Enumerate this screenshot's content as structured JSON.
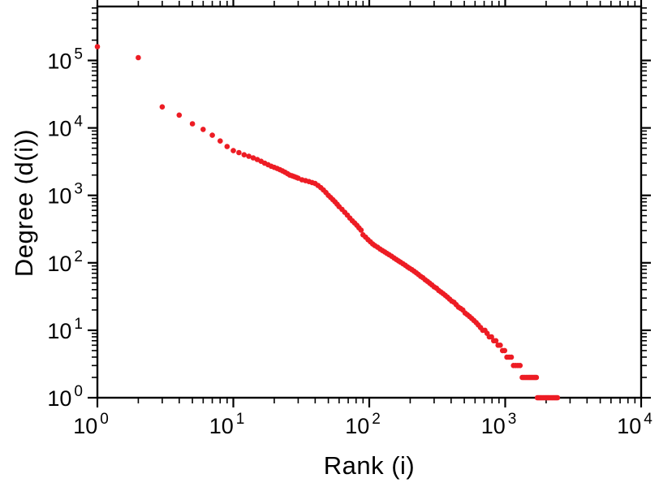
{
  "chart_data": {
    "type": "scatter",
    "xlabel": "Rank (i)",
    "ylabel": "Degree (d(i))",
    "x_scale": "log",
    "y_scale": "log",
    "tick_base": "10",
    "x_tick_exponents": [
      0,
      1,
      2,
      3,
      4
    ],
    "y_tick_exponents": [
      0,
      1,
      2,
      3,
      4,
      5
    ],
    "x_range_exp": [
      0,
      4
    ],
    "y_range_exp": [
      0,
      5.8
    ],
    "point_color": "#ed1c24",
    "axis_color": "#000000",
    "background_color": "#ffffff",
    "points": [
      [
        1,
        160000
      ],
      [
        2,
        110000
      ],
      [
        3,
        20500
      ],
      [
        4,
        15500
      ],
      [
        5,
        11500
      ],
      [
        6,
        9500
      ],
      [
        7,
        7800
      ],
      [
        8,
        6400
      ],
      [
        9,
        5300
      ],
      [
        10,
        4600
      ],
      [
        11,
        4300
      ],
      [
        12,
        4000
      ],
      [
        13,
        3800
      ],
      [
        14,
        3600
      ],
      [
        15,
        3400
      ],
      [
        16,
        3200
      ],
      [
        17,
        3000
      ],
      [
        18,
        2850
      ],
      [
        19,
        2700
      ],
      [
        20,
        2600
      ],
      [
        21,
        2500
      ],
      [
        22,
        2400
      ],
      [
        23,
        2300
      ],
      [
        24,
        2200
      ],
      [
        25,
        2100
      ],
      [
        26,
        2000
      ],
      [
        27,
        1950
      ],
      [
        28,
        1900
      ],
      [
        29,
        1850
      ],
      [
        30,
        1800
      ],
      [
        32,
        1700
      ],
      [
        34,
        1650
      ],
      [
        36,
        1600
      ],
      [
        38,
        1550
      ],
      [
        40,
        1500
      ],
      [
        42,
        1400
      ],
      [
        44,
        1300
      ],
      [
        46,
        1200
      ],
      [
        48,
        1100
      ],
      [
        50,
        1000
      ],
      [
        52,
        930
      ],
      [
        54,
        860
      ],
      [
        56,
        800
      ],
      [
        58,
        740
      ],
      [
        60,
        680
      ],
      [
        63,
        620
      ],
      [
        66,
        560
      ],
      [
        69,
        510
      ],
      [
        72,
        460
      ],
      [
        75,
        420
      ],
      [
        78,
        390
      ],
      [
        81,
        360
      ],
      [
        84,
        330
      ],
      [
        87,
        305
      ],
      [
        90,
        260
      ],
      [
        94,
        240
      ],
      [
        98,
        220
      ],
      [
        102,
        205
      ],
      [
        106,
        190
      ],
      [
        110,
        180
      ],
      [
        115,
        170
      ],
      [
        120,
        160
      ],
      [
        125,
        152
      ],
      [
        130,
        145
      ],
      [
        135,
        138
      ],
      [
        140,
        132
      ],
      [
        146,
        125
      ],
      [
        152,
        118
      ],
      [
        158,
        112
      ],
      [
        164,
        107
      ],
      [
        170,
        102
      ],
      [
        177,
        97
      ],
      [
        184,
        92
      ],
      [
        191,
        87
      ],
      [
        198,
        83
      ],
      [
        206,
        79
      ],
      [
        214,
        75
      ],
      [
        222,
        71
      ],
      [
        230,
        67
      ],
      [
        239,
        63
      ],
      [
        248,
        60
      ],
      [
        258,
        56
      ],
      [
        268,
        53
      ],
      [
        278,
        50
      ],
      [
        289,
        47
      ],
      [
        300,
        44
      ],
      [
        312,
        42
      ],
      [
        324,
        39
      ],
      [
        336,
        37
      ],
      [
        349,
        35
      ],
      [
        362,
        33
      ],
      [
        376,
        31
      ],
      [
        390,
        29
      ],
      [
        405,
        27
      ],
      [
        420,
        26
      ],
      [
        436,
        24
      ],
      [
        453,
        22
      ],
      [
        470,
        21
      ],
      [
        488,
        20
      ],
      [
        507,
        18
      ],
      [
        526,
        17
      ],
      [
        546,
        16
      ],
      [
        567,
        15
      ],
      [
        588,
        14
      ],
      [
        611,
        13
      ],
      [
        634,
        12
      ],
      [
        658,
        11
      ],
      [
        683,
        10
      ],
      [
        709,
        10
      ],
      [
        736,
        9
      ],
      [
        764,
        8
      ],
      [
        793,
        8
      ],
      [
        823,
        7
      ],
      [
        854,
        7
      ],
      [
        886,
        6
      ],
      [
        920,
        6
      ],
      [
        955,
        5
      ],
      [
        991,
        5
      ],
      [
        1029,
        4
      ],
      [
        1068,
        4
      ],
      [
        1108,
        4
      ],
      [
        1150,
        3
      ],
      [
        1194,
        3
      ],
      [
        1239,
        3
      ],
      [
        1286,
        3
      ],
      [
        1335,
        2
      ],
      [
        1365,
        2
      ],
      [
        1395,
        2
      ],
      [
        1425,
        2
      ],
      [
        1455,
        2
      ],
      [
        1485,
        2
      ],
      [
        1515,
        2
      ],
      [
        1545,
        2
      ],
      [
        1575,
        2
      ],
      [
        1605,
        2
      ],
      [
        1635,
        2
      ],
      [
        1665,
        2
      ],
      [
        1695,
        2
      ],
      [
        1725,
        1
      ],
      [
        1760,
        1
      ],
      [
        1795,
        1
      ],
      [
        1830,
        1
      ],
      [
        1870,
        1
      ],
      [
        1910,
        1
      ],
      [
        1950,
        1
      ],
      [
        1990,
        1
      ],
      [
        2030,
        1
      ],
      [
        2070,
        1
      ],
      [
        2110,
        1
      ],
      [
        2155,
        1
      ],
      [
        2200,
        1
      ],
      [
        2245,
        1
      ],
      [
        2290,
        1
      ],
      [
        2335,
        1
      ],
      [
        2380,
        1
      ],
      [
        2425,
        1
      ]
    ]
  }
}
